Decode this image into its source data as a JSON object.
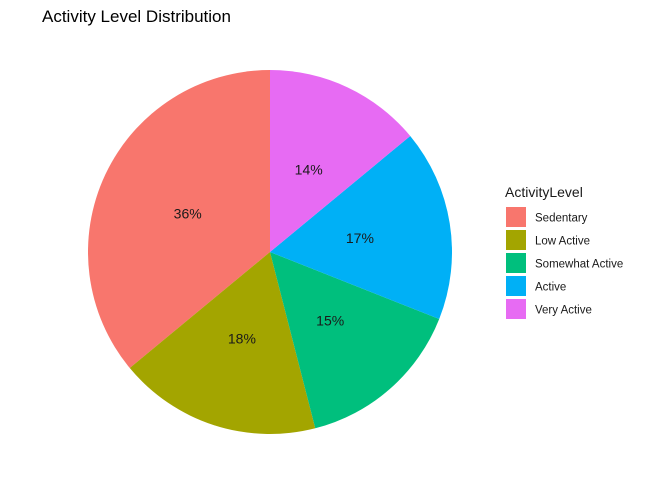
{
  "chart_data": {
    "type": "pie",
    "title": "Activity Level Distribution",
    "legend_title": "ActivityLevel",
    "legend_position": "right",
    "start": "top",
    "direction": "counterclockwise",
    "categories": [
      "Sedentary",
      "Low Active",
      "Somewhat Active",
      "Active",
      "Very Active"
    ],
    "values": [
      36,
      18,
      15,
      17,
      14
    ],
    "labels": [
      "36%",
      "18%",
      "15%",
      "17%",
      "14%"
    ],
    "colors": [
      "#F8766D",
      "#A3A500",
      "#00BF7D",
      "#00B0F6",
      "#E76BF3"
    ]
  }
}
